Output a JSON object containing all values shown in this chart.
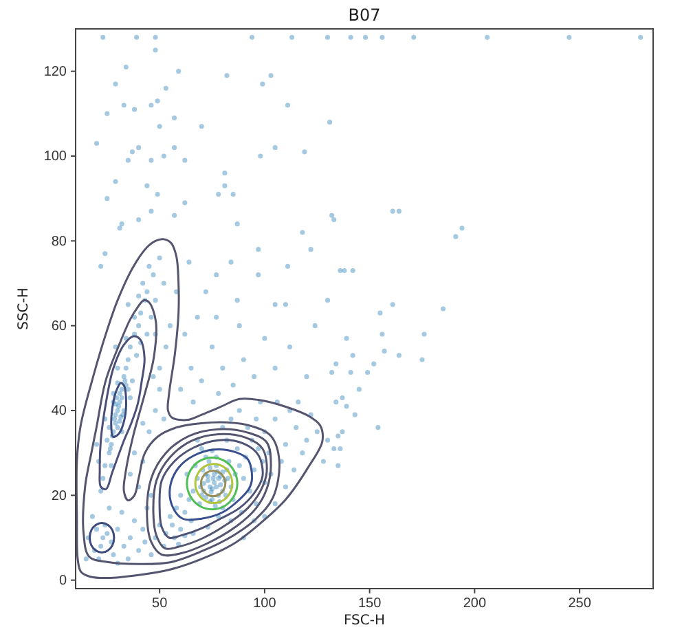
{
  "chart_data": {
    "type": "scatter",
    "title": "B07",
    "xlabel": "FSC-H",
    "ylabel": "SSC-H",
    "xlim": [
      10,
      285
    ],
    "ylim": [
      -2,
      130
    ],
    "xticks": [
      50,
      100,
      150,
      200,
      250
    ],
    "yticks": [
      0,
      20,
      40,
      60,
      80,
      100,
      120
    ],
    "marker": "circle",
    "series": [
      {
        "color": "#1f77b4",
        "x": [
          76,
          74,
          78,
          72,
          80,
          70,
          82,
          75,
          77,
          73,
          79,
          71,
          81,
          74.5,
          77.5,
          68,
          84,
          69,
          83,
          66,
          86,
          64,
          88,
          72,
          80,
          62,
          90,
          67,
          85,
          60,
          91,
          65,
          87,
          58,
          93,
          70,
          78,
          56,
          95,
          75,
          63,
          89,
          53,
          57,
          60,
          55,
          52,
          59,
          62,
          66,
          50,
          97,
          94,
          82,
          68,
          99,
          100,
          96,
          73,
          84,
          75,
          77,
          73,
          79,
          71,
          76,
          78,
          74,
          80,
          72,
          76.5,
          73.5,
          78.5,
          70.5,
          81.5,
          75.5,
          69.5,
          82.5,
          74,
          77,
          30,
          31,
          29,
          32,
          28,
          33,
          27,
          34,
          26,
          31.5,
          29.5,
          35,
          24,
          36,
          23,
          38,
          25,
          33,
          28,
          37,
          40,
          41,
          43,
          39,
          42,
          45,
          44,
          47,
          50,
          38,
          34,
          46,
          48,
          22,
          26,
          35,
          36,
          27,
          21,
          30,
          32,
          24,
          41,
          48,
          52,
          40,
          35,
          29,
          20,
          44,
          30.5,
          29,
          31,
          28.5,
          32,
          30,
          27.5,
          33.5,
          29,
          31,
          34,
          26.5,
          32.5,
          28,
          30,
          23,
          22,
          25,
          20,
          27,
          24,
          19,
          28,
          18,
          30,
          33,
          36,
          40,
          43,
          46,
          38,
          32,
          26,
          16,
          21,
          35,
          42,
          48,
          30,
          15,
          40,
          42,
          45,
          48,
          50,
          52,
          46,
          44,
          38,
          50,
          53,
          47,
          55,
          36,
          42,
          100,
          105,
          110,
          115,
          120,
          108,
          112,
          118,
          125,
          102,
          96,
          92,
          106,
          114,
          122,
          98,
          88,
          103,
          110,
          116,
          128,
          130,
          84,
          80,
          105,
          95,
          90,
          100,
          60,
          65,
          70,
          75,
          62,
          68,
          80,
          85,
          90,
          72,
          58,
          64,
          95,
          78,
          66,
          88,
          100,
          105,
          112,
          120,
          124,
          110,
          23,
          39,
          48,
          94,
          113,
          130,
          141,
          148,
          156,
          171,
          206,
          245,
          279,
          131,
          161,
          164,
          132,
          133,
          194,
          191,
          138,
          142,
          161,
          155,
          185,
          139,
          156,
          176,
          157,
          164,
          142,
          134,
          141,
          149,
          152,
          175,
          132,
          145,
          137,
          139,
          134,
          143,
          154,
          137,
          135,
          133,
          136,
          135,
          20,
          34,
          29,
          48,
          59,
          25,
          33,
          38,
          46,
          49,
          53,
          50,
          57,
          40,
          37,
          35,
          46,
          52,
          57,
          62,
          29,
          25,
          44,
          49,
          46,
          40,
          32,
          57,
          62,
          70,
          78,
          81,
          81,
          85,
          87,
          98,
          105,
          119,
          111,
          99,
          103,
          82,
          97,
          118,
          122,
          111,
          84,
          77,
          87,
          105,
          130,
          136,
          97,
          77,
          24,
          22,
          31
        ],
        "values": [
          23,
          22,
          24,
          25,
          21,
          20,
          26,
          19,
          27,
          24.5,
          22.5,
          22.8,
          23.5,
          20.8,
          25.6,
          24,
          22,
          18,
          28,
          21,
          25,
          19,
          27,
          29,
          17,
          16,
          24,
          27,
          19,
          20,
          29,
          14,
          31,
          17,
          21,
          31,
          15,
          13,
          26,
          30.5,
          25,
          16,
          11,
          10,
          12,
          15,
          8,
          8.5,
          10.5,
          11,
          13,
          31,
          33,
          33,
          33,
          28,
          23,
          18,
          12.5,
          14,
          21.5,
          22,
          23.5,
          24.5,
          21,
          25,
          20,
          26.5,
          25.5,
          19.5,
          17.5,
          28,
          18.5,
          26,
          20,
          24,
          22,
          24,
          18.5,
          29,
          40,
          42,
          37,
          45,
          35,
          48,
          32,
          50,
          30,
          38.5,
          43,
          52,
          27,
          55,
          24,
          58,
          33,
          40,
          42,
          47,
          60,
          63,
          66,
          53,
          70,
          74,
          68,
          72,
          76,
          62,
          57,
          62,
          66,
          21,
          36,
          45,
          43,
          27,
          28,
          50,
          35,
          38,
          56,
          58,
          70,
          67,
          65,
          55,
          32,
          58,
          41,
          39,
          44,
          38,
          43,
          36,
          34,
          47,
          41.5,
          37.5,
          46,
          31,
          39,
          44,
          46.5,
          10,
          8,
          11,
          12,
          9,
          13,
          7,
          6,
          15,
          12,
          8,
          10,
          7,
          9,
          6,
          14,
          16,
          17,
          10,
          5,
          5,
          12,
          10,
          4,
          5,
          22,
          28,
          35,
          40,
          45,
          38,
          20,
          17,
          30,
          50,
          55,
          48,
          60,
          25,
          37,
          35,
          38,
          32,
          36,
          33,
          28,
          40,
          30,
          35,
          30,
          38,
          36,
          42,
          26,
          39,
          42,
          40,
          25,
          22,
          42,
          28,
          33,
          38,
          36,
          18,
          14,
          10,
          15,
          45,
          50,
          47,
          55,
          58,
          62,
          50,
          46,
          52,
          68,
          68,
          75,
          48,
          44,
          42,
          60,
          57,
          50,
          55,
          48,
          60,
          65,
          128,
          128,
          128,
          128,
          128,
          128,
          128,
          128,
          128,
          128,
          128,
          128,
          128,
          108,
          87,
          87,
          86,
          85,
          83,
          81,
          73,
          73,
          65,
          63,
          64,
          57,
          58,
          58,
          54,
          53,
          53,
          51,
          49,
          49,
          51,
          52,
          49,
          45,
          43,
          41,
          42,
          39,
          36,
          35,
          34,
          31,
          31,
          27,
          103,
          121,
          117,
          125,
          120,
          110,
          112,
          111,
          112,
          113,
          116,
          107,
          109,
          102,
          101,
          99,
          99,
          100,
          102,
          99,
          94,
          90,
          93,
          91,
          87,
          85,
          84,
          86,
          89,
          107,
          91,
          96,
          93,
          91,
          84,
          100,
          102,
          101,
          112,
          117,
          119,
          119,
          78,
          82,
          78,
          74,
          75,
          72,
          66,
          65,
          66,
          73,
          72,
          62,
          77,
          74,
          83
        ]
      }
    ]
  }
}
